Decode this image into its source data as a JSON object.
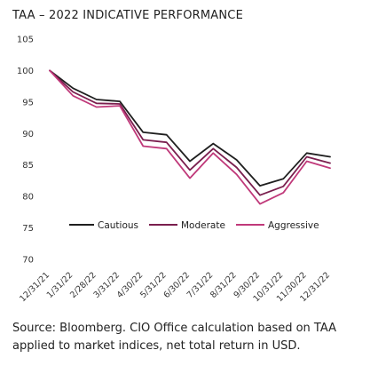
{
  "title": "TAA – 2022 INDICATIVE PERFORMANCE",
  "source": "Source: Bloomberg. CIO Office calculation based on TAA applied to market indices, net total return in USD.",
  "chart_data": {
    "type": "line",
    "title": "TAA – 2022 INDICATIVE PERFORMANCE",
    "xlabel": "",
    "ylabel": "",
    "ylim": [
      70,
      105
    ],
    "yticks": [
      105,
      100,
      95,
      90,
      85,
      80,
      75,
      70
    ],
    "grid": false,
    "legend_position": "middle-right",
    "x": [
      "12/31/21",
      "1/31/22",
      "2/28/22",
      "3/31/22",
      "4/30/22",
      "5/31/22",
      "6/30/22",
      "7/31/22",
      "8/31/22",
      "9/30/22",
      "10/31/22",
      "11/30/22",
      "12/31/22"
    ],
    "series": [
      {
        "name": "Cautious",
        "color": "#1f1f1f",
        "values": [
          100.0,
          97.2,
          95.4,
          95.1,
          90.2,
          89.8,
          85.6,
          88.4,
          85.8,
          81.7,
          82.8,
          86.9,
          86.3
        ]
      },
      {
        "name": "Moderate",
        "color": "#7a1f4e",
        "values": [
          100.0,
          96.6,
          94.8,
          94.7,
          89.0,
          88.6,
          84.2,
          87.6,
          84.6,
          80.2,
          81.6,
          86.3,
          85.3
        ]
      },
      {
        "name": "Aggressive",
        "color": "#c0397a",
        "values": [
          100.0,
          96.0,
          94.2,
          94.4,
          88.0,
          87.6,
          82.9,
          86.9,
          83.5,
          78.8,
          80.6,
          85.6,
          84.5
        ]
      }
    ]
  }
}
